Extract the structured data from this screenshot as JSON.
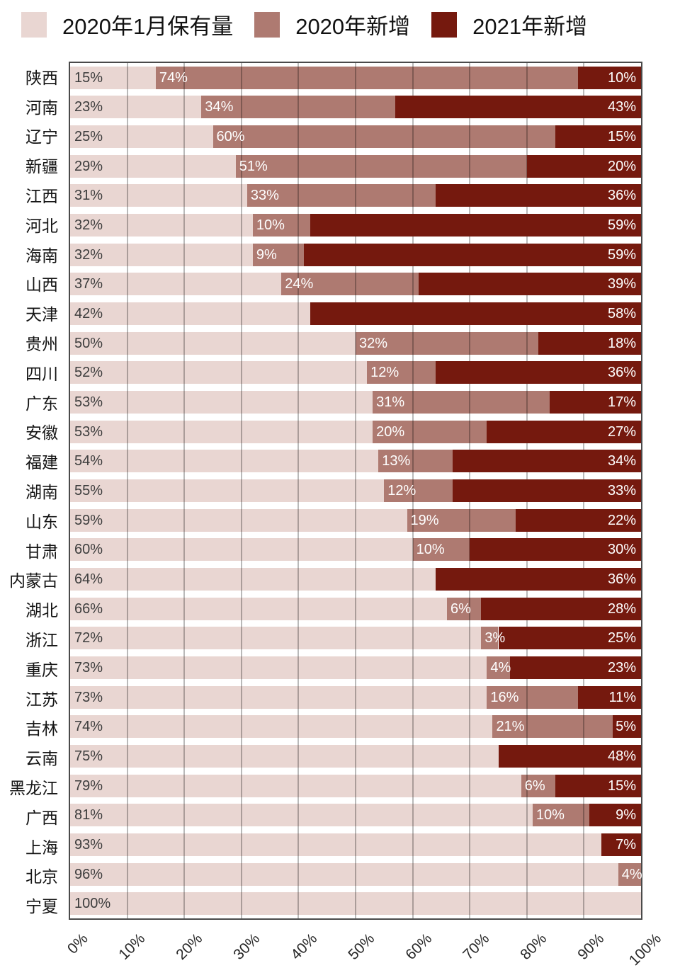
{
  "legend": {
    "items": [
      "2020年1月保有量",
      "2020年新增",
      "2021年新增"
    ]
  },
  "colors": {
    "base": "#e9d6d2",
    "increment_2020": "#ae7a71",
    "increment_2021": "#75190e",
    "gridline": "rgba(0,0,0,0.27)",
    "plot_border": "#4a4a4a"
  },
  "chart_data": {
    "type": "bar",
    "orientation": "horizontal",
    "stacked": true,
    "grid": "vertical",
    "legend_position": "top",
    "xlim": [
      0,
      100
    ],
    "x_ticks": [
      "0%",
      "10%",
      "20%",
      "30%",
      "40%",
      "50%",
      "60%",
      "70%",
      "80%",
      "90%",
      "100%"
    ],
    "categories": [
      "陕西",
      "河南",
      "辽宁",
      "新疆",
      "江西",
      "河北",
      "海南",
      "山西",
      "天津",
      "贵州",
      "四川",
      "广东",
      "安徽",
      "福建",
      "湖南",
      "山东",
      "甘肃",
      "内蒙古",
      "湖北",
      "浙江",
      "重庆",
      "江苏",
      "吉林",
      "云南",
      "黑龙江",
      "广西",
      "上海",
      "北京",
      "宁夏"
    ],
    "series": [
      {
        "name": "2020年1月保有量",
        "color": "#e9d6d2",
        "values": [
          15,
          23,
          25,
          29,
          31,
          32,
          32,
          37,
          42,
          50,
          52,
          53,
          53,
          54,
          55,
          59,
          60,
          64,
          66,
          72,
          73,
          73,
          74,
          75,
          79,
          81,
          93,
          96,
          100
        ],
        "labels": [
          "15%",
          "23%",
          "25%",
          "29%",
          "31%",
          "32%",
          "32%",
          "37%",
          "42%",
          "50%",
          "52%",
          "53%",
          "53%",
          "54%",
          "55%",
          "59%",
          "60%",
          "64%",
          "66%",
          "72%",
          "73%",
          "73%",
          "74%",
          "75%",
          "79%",
          "81%",
          "93%",
          "96%",
          "100%"
        ]
      },
      {
        "name": "2020年新增",
        "color": "#ae7a71",
        "values": [
          74,
          34,
          60,
          51,
          33,
          10,
          9,
          24,
          null,
          32,
          12,
          31,
          20,
          13,
          12,
          19,
          10,
          null,
          6,
          3,
          4,
          16,
          21,
          null,
          6,
          10,
          null,
          4,
          null
        ],
        "labels": [
          "74%",
          "34%",
          "60%",
          "51%",
          "33%",
          "10%",
          "9%",
          "24%",
          null,
          "32%",
          "12%",
          "31%",
          "20%",
          "13%",
          "12%",
          "19%",
          "10%",
          null,
          "6%",
          "3%",
          "4%",
          "16%",
          "21%",
          null,
          "6%",
          "10%",
          null,
          "4%",
          null
        ]
      },
      {
        "name": "2021年新增",
        "color": "#75190e",
        "values": [
          10,
          43,
          15,
          20,
          36,
          59,
          59,
          39,
          58,
          18,
          36,
          17,
          27,
          34,
          33,
          22,
          30,
          36,
          28,
          25,
          23,
          11,
          5,
          48,
          15,
          9,
          7,
          null,
          null
        ],
        "labels": [
          "10%",
          "43%",
          "15%",
          "20%",
          "36%",
          "59%",
          "59%",
          "39%",
          "58%",
          "18%",
          "36%",
          "17%",
          "27%",
          "34%",
          "33%",
          "22%",
          "30%",
          "36%",
          "28%",
          "25%",
          "23%",
          "11%",
          "5%",
          "48%",
          "15%",
          "9%",
          "7%",
          null,
          null
        ]
      }
    ]
  }
}
